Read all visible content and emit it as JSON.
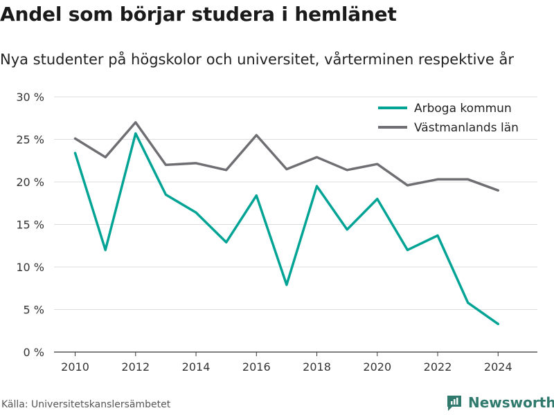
{
  "title": "Andel som börjar studera i hemlänet",
  "subtitle": "Nya studenter på högskolor och universitet, vårterminen respektive år",
  "source": "Källa: Universitetskanslersämbetet",
  "brand": "Newsworthy",
  "colors": {
    "arboga": "#00a394",
    "vastmanland": "#6e6e73",
    "grid": "#dcdcdc",
    "brand": "#2f7a6d"
  },
  "chart_data": {
    "type": "line",
    "x": [
      2010,
      2011,
      2012,
      2013,
      2014,
      2015,
      2016,
      2017,
      2018,
      2019,
      2020,
      2021,
      2022,
      2023,
      2024
    ],
    "series": [
      {
        "name": "Arboga kommun",
        "values": [
          23.4,
          12.0,
          25.7,
          18.5,
          16.4,
          12.9,
          18.4,
          7.9,
          19.5,
          14.4,
          18.0,
          12.0,
          13.7,
          5.8,
          3.3
        ]
      },
      {
        "name": "Västmanlands län",
        "values": [
          25.1,
          22.9,
          27.0,
          22.0,
          22.2,
          21.4,
          25.5,
          21.5,
          22.9,
          21.4,
          22.1,
          19.6,
          20.3,
          20.3,
          19.0
        ]
      }
    ],
    "xticks": [
      2010,
      2012,
      2014,
      2016,
      2018,
      2020,
      2022,
      2024
    ],
    "yticks": [
      0,
      5,
      10,
      15,
      20,
      25,
      30
    ],
    "ytick_labels": [
      "0 %",
      "5 %",
      "10 %",
      "15 %",
      "20 %",
      "25 %",
      "30 %"
    ],
    "ylim": [
      0,
      30
    ],
    "grid": true,
    "legend_position": "top-right"
  }
}
